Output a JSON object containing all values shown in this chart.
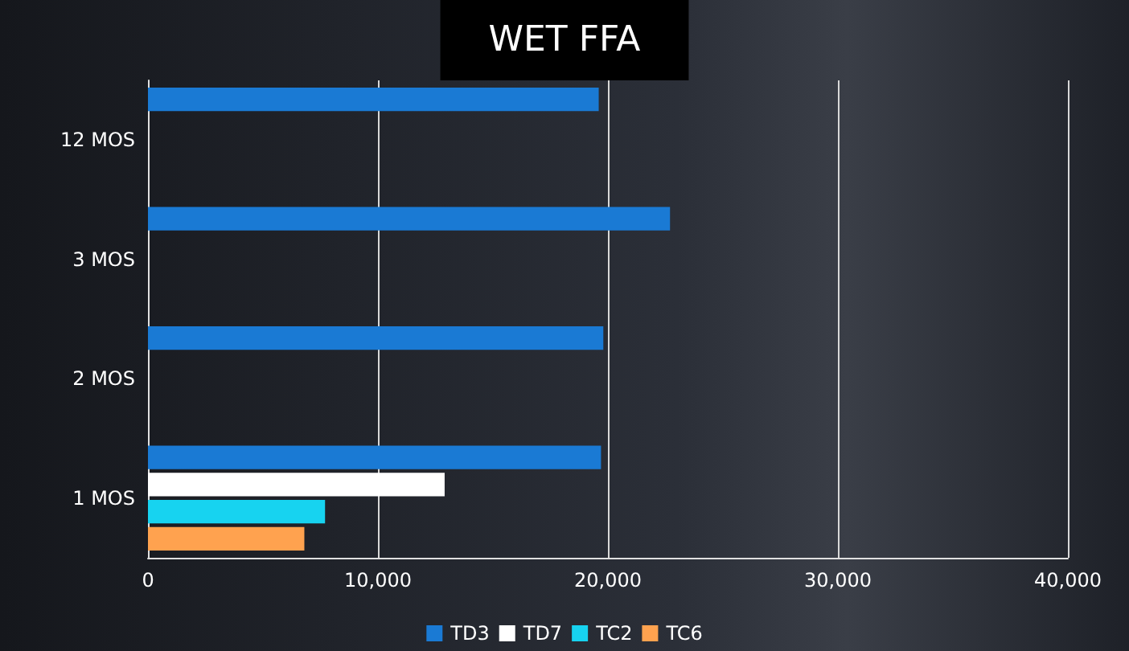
{
  "chart_data": {
    "type": "bar",
    "orientation": "horizontal",
    "title": "WET FFA",
    "categories": [
      "12 MOS",
      "3 MOS",
      "2 MOS",
      "1 MOS"
    ],
    "series": [
      {
        "name": "TD3",
        "color": "#1a7ad4",
        "values": [
          19600,
          22700,
          19800,
          19700
        ]
      },
      {
        "name": "TD7",
        "color": "#ffffff",
        "values": [
          null,
          null,
          null,
          12900
        ]
      },
      {
        "name": "TC2",
        "color": "#17d3f0",
        "values": [
          null,
          null,
          null,
          7700
        ]
      },
      {
        "name": "TC6",
        "color": "#ffa24f",
        "values": [
          null,
          null,
          null,
          6800
        ]
      }
    ],
    "xlim": [
      0,
      40000
    ],
    "xticks": [
      0,
      {
        "value": 10000,
        "label": "10,000"
      },
      {
        "value": 20000,
        "label": "20,000"
      },
      {
        "value": 30000,
        "label": "30,000"
      },
      {
        "value": 40000,
        "label": "40,000"
      }
    ],
    "grid": "x",
    "legend": "bottom"
  }
}
